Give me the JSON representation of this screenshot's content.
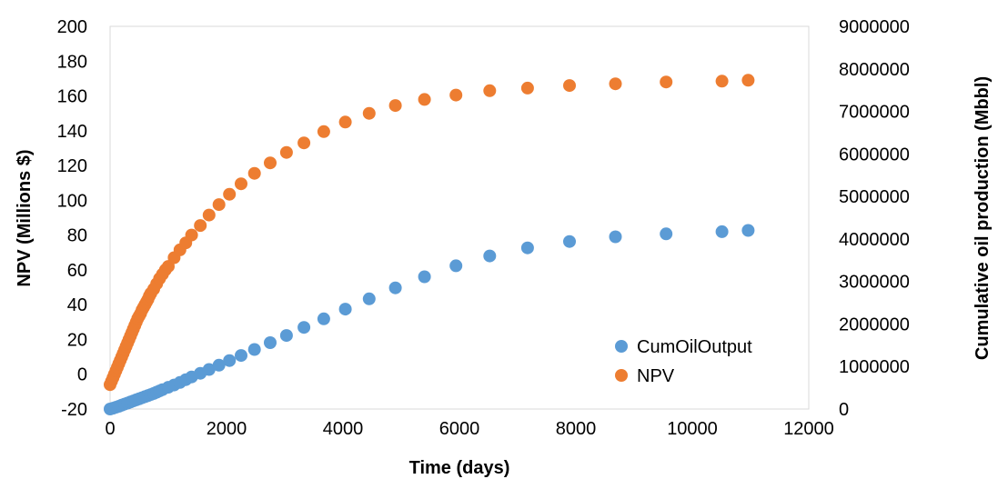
{
  "chart_data": {
    "type": "scatter",
    "title": "",
    "xlabel": "Time (days)",
    "ylabel": "NPV (Millions $)",
    "y2label": "Cumulative oil production (Mbbl)",
    "xlim": [
      0,
      12000
    ],
    "ylim": [
      -20,
      200
    ],
    "y2lim": [
      0,
      9000000
    ],
    "xticks": [
      "0",
      "2000",
      "4000",
      "6000",
      "8000",
      "10000",
      "12000"
    ],
    "yticks": [
      "-20",
      "0",
      "20",
      "40",
      "60",
      "80",
      "100",
      "120",
      "140",
      "160",
      "180",
      "200"
    ],
    "y2ticks": [
      "0",
      "1000000",
      "2000000",
      "3000000",
      "4000000",
      "5000000",
      "6000000",
      "7000000",
      "8000000",
      "9000000"
    ],
    "grid": false,
    "legend_position": "bottom-right",
    "series": [
      {
        "name": "CumOilOutput",
        "axis": "right",
        "color": "#5B9BD5",
        "x": [
          0,
          50,
          100,
          150,
          200,
          250,
          300,
          350,
          400,
          450,
          500,
          550,
          600,
          650,
          700,
          750,
          800,
          850,
          900,
          1000,
          1100,
          1200,
          1300,
          1400,
          1550,
          1700,
          1870,
          2050,
          2250,
          2480,
          2750,
          3030,
          3330,
          3670,
          4040,
          4450,
          4900,
          5400,
          5940,
          6520,
          7170,
          7890,
          8680,
          9550,
          10510,
          10960
        ],
        "y": [
          0,
          20000,
          40000,
          65000,
          90000,
          115000,
          140000,
          165000,
          190000,
          215000,
          240000,
          265000,
          290000,
          315000,
          340000,
          365000,
          395000,
          425000,
          455000,
          510000,
          565000,
          625000,
          690000,
          755000,
          840000,
          930000,
          1030000,
          1140000,
          1260000,
          1400000,
          1560000,
          1730000,
          1920000,
          2120000,
          2350000,
          2590000,
          2850000,
          3110000,
          3370000,
          3600000,
          3790000,
          3940000,
          4050000,
          4120000,
          4170000,
          4200000
        ]
      },
      {
        "name": "NPV",
        "axis": "left",
        "color": "#ED7D31",
        "x": [
          0,
          25,
          50,
          75,
          100,
          125,
          150,
          175,
          200,
          225,
          250,
          275,
          300,
          325,
          350,
          375,
          400,
          425,
          450,
          475,
          500,
          525,
          550,
          575,
          600,
          625,
          650,
          675,
          700,
          750,
          800,
          850,
          900,
          950,
          1000,
          1100,
          1200,
          1300,
          1400,
          1550,
          1700,
          1870,
          2050,
          2250,
          2480,
          2750,
          3030,
          3330,
          3670,
          4040,
          4450,
          4900,
          5400,
          5940,
          6520,
          7170,
          7890,
          8680,
          9550,
          10510,
          10960
        ],
        "y": [
          -6,
          -4,
          -2,
          0,
          2,
          4,
          6,
          8,
          10,
          12,
          14,
          16,
          18,
          20,
          22,
          24,
          26,
          28,
          30,
          32,
          33.5,
          35,
          37,
          38.5,
          40,
          41.5,
          43,
          45,
          46.5,
          49,
          52,
          55,
          57.5,
          60,
          62,
          67,
          71.5,
          75.5,
          80,
          85.5,
          91.5,
          97.5,
          103.5,
          109.5,
          115.5,
          121.5,
          127.5,
          133,
          139.5,
          145,
          150,
          154.5,
          158,
          160.5,
          163,
          164.5,
          166,
          167,
          168,
          168.5,
          169
        ]
      }
    ]
  }
}
